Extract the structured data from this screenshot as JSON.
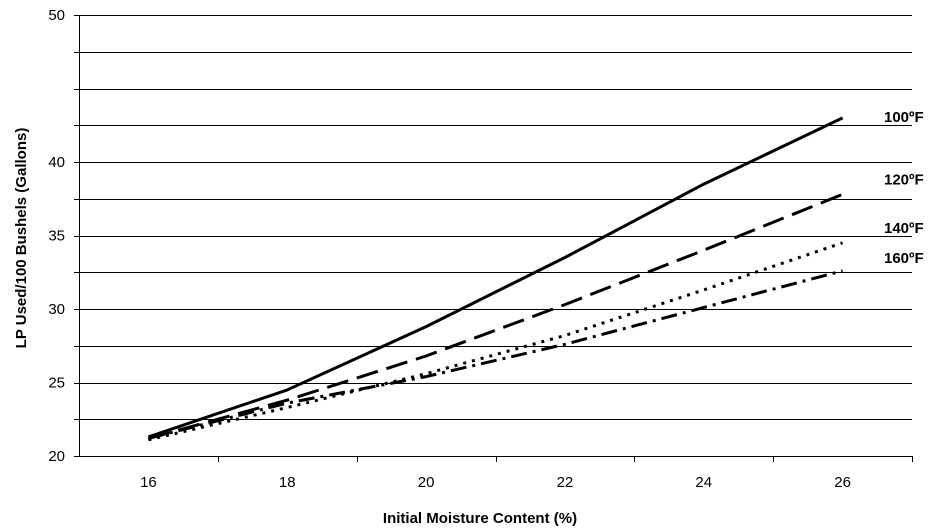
{
  "chart_data": {
    "type": "line",
    "title": "",
    "xlabel": "Initial Moisture Content (%)",
    "ylabel": "LP Used/100 Bushels (Gallons)",
    "xlim": [
      15,
      27
    ],
    "ylim": [
      20,
      50
    ],
    "xticks": [
      16,
      18,
      20,
      22,
      24,
      26
    ],
    "yticks": [
      20,
      25,
      30,
      35,
      40,
      45,
      50
    ],
    "ytick_labels": [
      "20",
      "25",
      "30",
      "35",
      "40",
      "",
      "50"
    ],
    "grid": "horizontal",
    "legend": "none",
    "series": [
      {
        "name": "100ºF",
        "style": "solid",
        "x": [
          16,
          18,
          20,
          22,
          24,
          26
        ],
        "y": [
          21.3,
          24.5,
          28.8,
          33.5,
          38.5,
          43.0
        ]
      },
      {
        "name": "120ºF",
        "style": "long-dash",
        "x": [
          16,
          18,
          20,
          22,
          24,
          26
        ],
        "y": [
          21.2,
          23.8,
          26.8,
          30.3,
          34.0,
          37.8
        ]
      },
      {
        "name": "140ºF",
        "style": "dotted",
        "x": [
          16,
          18,
          20,
          22,
          24,
          26
        ],
        "y": [
          21.1,
          23.3,
          25.6,
          28.2,
          31.3,
          34.5
        ]
      },
      {
        "name": "160ºF",
        "style": "dash-dot",
        "x": [
          16,
          18,
          20,
          22,
          24,
          26
        ],
        "y": [
          21.2,
          23.6,
          25.4,
          27.6,
          30.1,
          32.6
        ]
      }
    ]
  }
}
